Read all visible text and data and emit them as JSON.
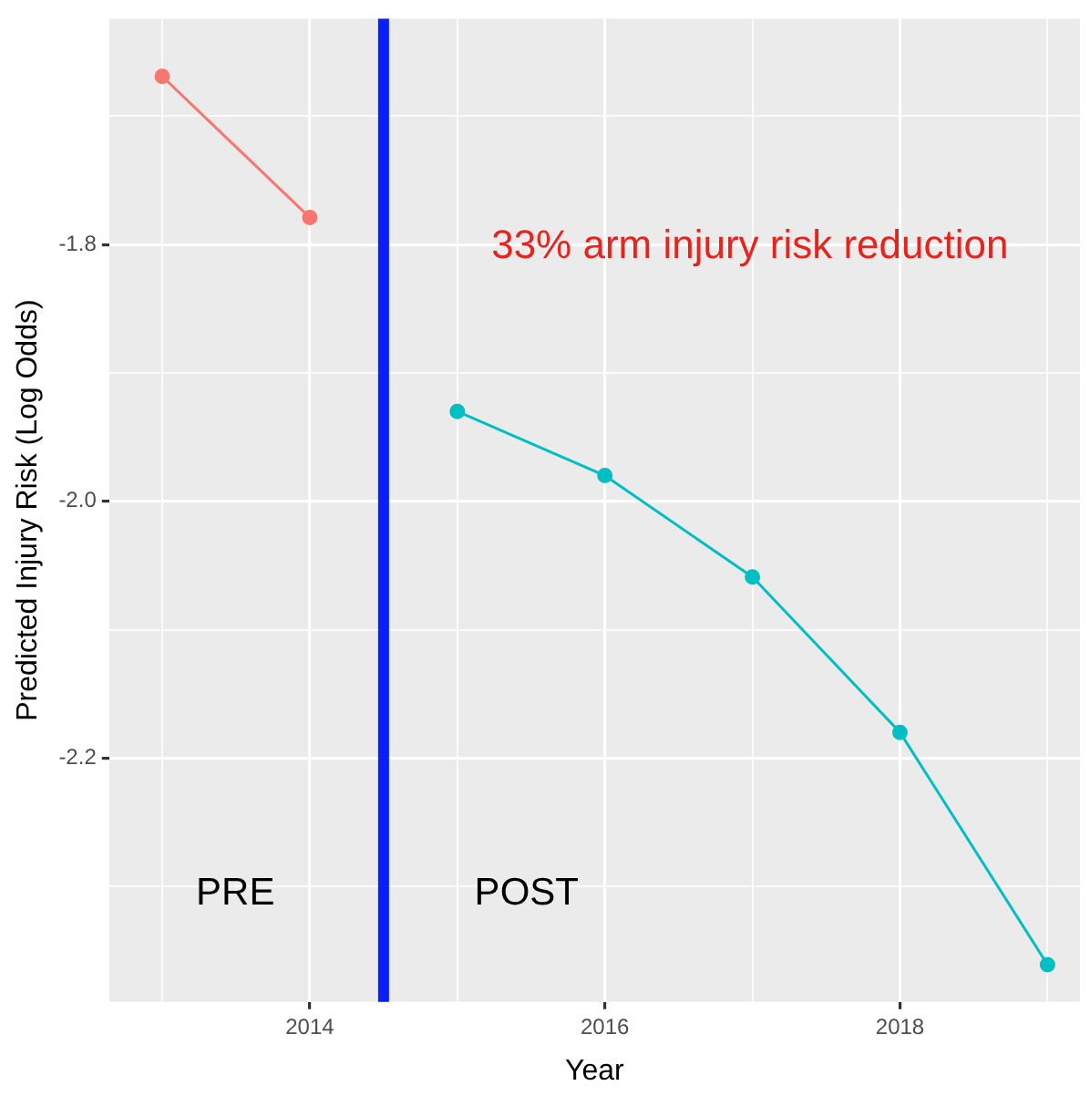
{
  "chart_data": {
    "type": "line",
    "xlabel": "Year",
    "ylabel": "Predicted Injury Risk (Log Odds)",
    "xlim": [
      2012.64,
      2019.22
    ],
    "ylim": [
      -2.39,
      -1.624
    ],
    "xticks": [
      {
        "value": 2013,
        "label": null
      },
      2014,
      {
        "value": 2015,
        "label": null
      },
      2016,
      {
        "value": 2017,
        "label": null
      },
      2018,
      {
        "value": 2019,
        "label": null
      }
    ],
    "yticks": [
      {
        "value": -2.3,
        "label": null
      },
      -2.2,
      {
        "value": -2.1,
        "label": null
      },
      {
        "value": -2,
        "label": "-2.0"
      },
      {
        "value": -1.9,
        "label": null
      },
      -1.8,
      {
        "value": -1.7,
        "label": null
      }
    ],
    "series": [
      {
        "color": "#f8766d",
        "x": [
          2013,
          2014
        ],
        "values": [
          -1.669,
          -1.779
        ]
      },
      {
        "color": "#00bfc4",
        "x": [
          2015,
          2016,
          2017,
          2018,
          2019
        ],
        "values": [
          -1.93,
          -1.98,
          -2.059,
          -2.18,
          -2.361
        ]
      }
    ],
    "ref_lines": [
      {
        "axis": "x",
        "value": 2014.5,
        "color": "#0a1fff"
      }
    ],
    "annotations": [
      "33% arm injury risk reduction",
      "PRE",
      "POST"
    ],
    "grid": true,
    "marker": "circle",
    "line_style": "solid",
    "legend": false
  }
}
